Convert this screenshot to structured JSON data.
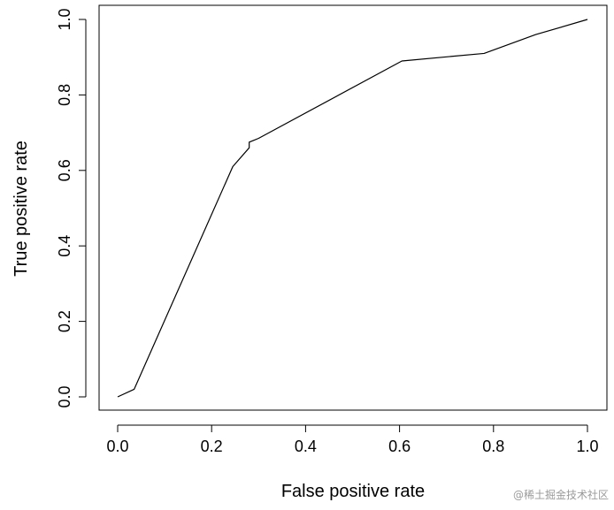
{
  "chart_data": {
    "type": "line",
    "title": "",
    "xlabel": "False positive rate",
    "ylabel": "True positive rate",
    "xlim": [
      0,
      1
    ],
    "ylim": [
      0,
      1
    ],
    "x_ticks": [
      "0.0",
      "0.2",
      "0.4",
      "0.6",
      "0.8",
      "1.0"
    ],
    "y_ticks": [
      "0.0",
      "0.2",
      "0.4",
      "0.6",
      "0.8",
      "1.0"
    ],
    "grid": false,
    "legend": "none",
    "line_color": "#000000",
    "series": [
      {
        "x": [
          0.0,
          0.035,
          0.245,
          0.28,
          0.28,
          0.29,
          0.3,
          0.605,
          0.78,
          0.89,
          1.0
        ],
        "y": [
          0.0,
          0.02,
          0.61,
          0.66,
          0.675,
          0.68,
          0.685,
          0.89,
          0.91,
          0.96,
          1.0
        ]
      }
    ]
  },
  "watermark": "@稀土掘金技术社区"
}
